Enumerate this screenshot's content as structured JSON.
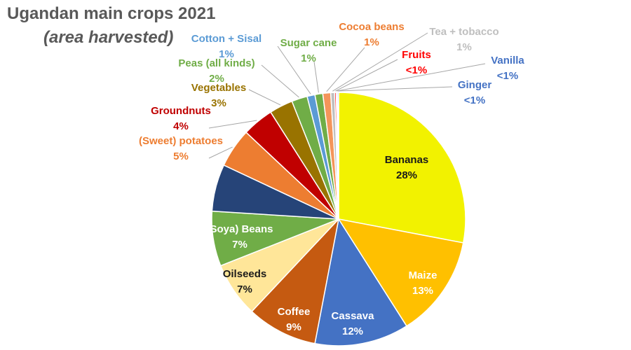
{
  "chart_data": {
    "type": "pie",
    "title": "Ugandan main crops 2021",
    "subtitle": "(area harvested)",
    "slices": [
      {
        "name": "Bananas",
        "value": 28,
        "pct_label": "28%",
        "color": "#F2F200",
        "label_color": "#1a1a1a"
      },
      {
        "name": "Maize",
        "value": 13,
        "pct_label": "13%",
        "color": "#FFC000",
        "label_color": "#ffffff"
      },
      {
        "name": "Cassava",
        "value": 12,
        "pct_label": "12%",
        "color": "#4472C4",
        "label_color": "#ffffff"
      },
      {
        "name": "Coffee",
        "value": 9,
        "pct_label": "9%",
        "color": "#C55A11",
        "label_color": "#ffffff"
      },
      {
        "name": "Oilseeds",
        "value": 7,
        "pct_label": "7%",
        "color": "#FFE699",
        "label_color": "#1a1a1a"
      },
      {
        "name": "(Soya) Beans",
        "value": 7,
        "pct_label": "7%",
        "color": "#70AD47",
        "label_color": "#ffffff"
      },
      {
        "name": "",
        "value": 6,
        "pct_label": "",
        "color": "#264478",
        "label_color": "#ffffff"
      },
      {
        "name": "(Sweet) potatoes",
        "value": 5,
        "pct_label": "5%",
        "color": "#ED7D31",
        "label_color": "#ED7D31"
      },
      {
        "name": "Groundnuts",
        "value": 4,
        "pct_label": "4%",
        "color": "#C00000",
        "label_color": "#C00000"
      },
      {
        "name": "Vegetables",
        "value": 3,
        "pct_label": "3%",
        "color": "#997300",
        "label_color": "#997300"
      },
      {
        "name": "Peas (all kinds)",
        "value": 2,
        "pct_label": "2%",
        "color": "#70AD47",
        "label_color": "#70AD47"
      },
      {
        "name": "Cotton + Sisal",
        "value": 1,
        "pct_label": "1%",
        "color": "#5B9BD5",
        "label_color": "#5B9BD5"
      },
      {
        "name": "Sugar cane",
        "value": 1,
        "pct_label": "1%",
        "color": "#70AD47",
        "label_color": "#70AD47"
      },
      {
        "name": "Cocoa beans",
        "value": 1,
        "pct_label": "1%",
        "color": "#F4955A",
        "label_color": "#ED7D31"
      },
      {
        "name": "Tea + tobacco",
        "value": 0.5,
        "pct_label": "1%",
        "color": "#BFBFBF",
        "label_color": "#BFBFBF"
      },
      {
        "name": "Fruits",
        "value": 0.2,
        "pct_label": "<1%",
        "color": "#FF0000",
        "label_color": "#FF0000"
      },
      {
        "name": "Vanilla",
        "value": 0.15,
        "pct_label": "<1%",
        "color": "#4472C4",
        "label_color": "#4472C4"
      },
      {
        "name": "Ginger",
        "value": 0.15,
        "pct_label": "<1%",
        "color": "#4472C4",
        "label_color": "#4472C4"
      }
    ],
    "legend": "none",
    "label_style": "data labels with leader lines for small slices"
  }
}
